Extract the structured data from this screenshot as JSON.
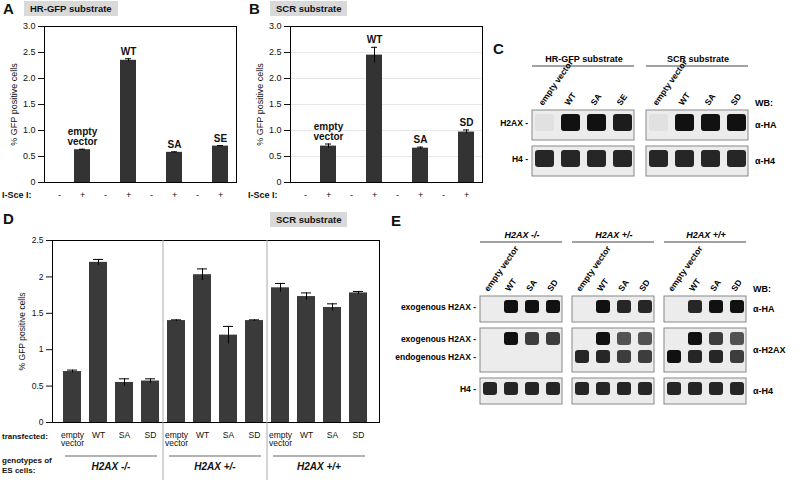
{
  "chart_data": [
    {
      "type": "bar",
      "panel": "A",
      "title": "HR-GFP substrate",
      "y_label": "% GFP positive cells",
      "x_label": "I-Sce I:",
      "groups": [
        "empty vector",
        "WT",
        "SA",
        "SE"
      ],
      "categories": [
        "-",
        "+",
        "-",
        "+",
        "-",
        "+",
        "-",
        "+"
      ],
      "values": [
        0,
        0.63,
        0,
        2.35,
        0,
        0.58,
        0,
        0.7
      ],
      "errors": [
        0,
        0.01,
        0,
        0.03,
        0,
        0.01,
        0,
        0.01
      ],
      "color": "#333333",
      "ylim": [
        0,
        3
      ],
      "yticks": [
        0,
        0.5,
        {
          "value": 1,
          "label": "1.0"
        },
        1.5,
        {
          "value": 2,
          "label": "2.0"
        },
        2.5,
        {
          "value": 3,
          "label": "3.0"
        }
      ],
      "grid": false
    },
    {
      "type": "bar",
      "panel": "B",
      "title": "SCR substrate",
      "y_label": "% GFP positive cells",
      "x_label": "I-Sce I:",
      "groups": [
        "empty vector",
        "WT",
        "SA",
        "SD"
      ],
      "categories": [
        "-",
        "+",
        "-",
        "+",
        "-",
        "+",
        "-",
        "+"
      ],
      "values": [
        0,
        0.7,
        0,
        2.45,
        0,
        0.66,
        0,
        0.97
      ],
      "errors": [
        0,
        0.04,
        0,
        0.15,
        0,
        0.02,
        0,
        0.04
      ],
      "color": "#333333",
      "ylim": [
        0,
        3
      ],
      "yticks": [
        0,
        0.5,
        {
          "value": 1,
          "label": "1.0"
        },
        1.5,
        {
          "value": 2,
          "label": "2.0"
        },
        2.5,
        {
          "value": 3,
          "label": "3.0"
        }
      ],
      "grid": true
    },
    {
      "type": "bar",
      "panel": "D",
      "title": "SCR substrate",
      "y_label": "% GFP positive cells",
      "x_label": "transfected:",
      "group_label": "genotypes of ES cells:",
      "categories": [
        "empty vector",
        "WT",
        "SA",
        "SD"
      ],
      "series": [
        {
          "name": "H2AX -/-",
          "values": [
            0.7,
            2.2,
            0.55,
            0.57
          ],
          "errors": [
            0.02,
            0.04,
            0.05,
            0.03
          ]
        },
        {
          "name": "H2AX +/-",
          "values": [
            1.4,
            2.03,
            1.2,
            1.4
          ],
          "errors": [
            0.01,
            0.08,
            0.12,
            0.01
          ]
        },
        {
          "name": "H2AX +/+",
          "values": [
            1.85,
            1.73,
            1.58,
            1.78
          ],
          "errors": [
            0.06,
            0.05,
            0.05,
            0.02
          ]
        }
      ],
      "color": "#3a3a3a",
      "ylim": [
        0,
        2.5
      ],
      "yticks": [
        0,
        0.5,
        1,
        1.5,
        2,
        2.5
      ],
      "grid": false
    }
  ],
  "blots": [
    {
      "panel": "C",
      "wb_label": "WB:",
      "sections": [
        {
          "title": "HR-GFP substrate",
          "lanes": [
            "empty vector",
            "WT",
            "SA",
            "SE"
          ]
        },
        {
          "title": "SCR substrate",
          "lanes": [
            "empty vector",
            "WT",
            "SA",
            "SD"
          ]
        }
      ],
      "rows": [
        {
          "labels": [
            "H2AX -"
          ],
          "antibody": "α-HA",
          "bands": [
            [
              [
                0.05
              ],
              [
                1
              ],
              [
                1
              ],
              [
                0.95
              ]
            ],
            [
              [
                0.05
              ],
              [
                1
              ],
              [
                1
              ],
              [
                1
              ]
            ]
          ]
        },
        {
          "labels": [
            "H4 -"
          ],
          "antibody": "α-H4",
          "bands": [
            [
              [
                0.9
              ],
              [
                0.9
              ],
              [
                0.9
              ],
              [
                0.9
              ]
            ],
            [
              [
                0.9
              ],
              [
                0.9
              ],
              [
                0.9
              ],
              [
                0.9
              ]
            ]
          ]
        }
      ]
    },
    {
      "panel": "E",
      "wb_label": "WB:",
      "sections": [
        {
          "title": "H2AX -/-",
          "lanes": [
            "empty vector",
            "WT",
            "SA",
            "SD"
          ]
        },
        {
          "title": "H2AX +/-",
          "lanes": [
            "empty vector",
            "WT",
            "SA",
            "SD"
          ]
        },
        {
          "title": "H2AX +/+",
          "lanes": [
            "empty vector",
            "WT",
            "SA",
            "SD"
          ]
        }
      ],
      "rows": [
        {
          "labels": [
            "exogenous H2AX -"
          ],
          "antibody": "α-HA",
          "bands": [
            [
              [
                0
              ],
              [
                1
              ],
              [
                1
              ],
              [
                1
              ]
            ],
            [
              [
                0
              ],
              [
                1
              ],
              [
                0.9
              ],
              [
                0.9
              ]
            ],
            [
              [
                0
              ],
              [
                0.9
              ],
              [
                1
              ],
              [
                1
              ]
            ]
          ]
        },
        {
          "labels": [
            "exogenous H2AX -",
            "endogenous H2AX -"
          ],
          "antibody": "α-H2AX",
          "bands": [
            [
              [
                0,
                0
              ],
              [
                1,
                0
              ],
              [
                0.8,
                0
              ],
              [
                0.8,
                0
              ]
            ],
            [
              [
                0,
                0.9
              ],
              [
                1,
                0.9
              ],
              [
                0.7,
                0.8
              ],
              [
                0.7,
                0.8
              ]
            ],
            [
              [
                0,
                1
              ],
              [
                1,
                0.9
              ],
              [
                0.8,
                0.9
              ],
              [
                0.7,
                0.8
              ]
            ]
          ]
        },
        {
          "labels": [
            "H4 -"
          ],
          "antibody": "α-H4",
          "bands": [
            [
              [
                0.9
              ],
              [
                0.9
              ],
              [
                0.9
              ],
              [
                0.9
              ]
            ],
            [
              [
                0.9
              ],
              [
                0.9
              ],
              [
                0.9
              ],
              [
                0.9
              ]
            ],
            [
              [
                0.9
              ],
              [
                0.9
              ],
              [
                0.9
              ],
              [
                0.9
              ]
            ]
          ]
        }
      ]
    }
  ]
}
